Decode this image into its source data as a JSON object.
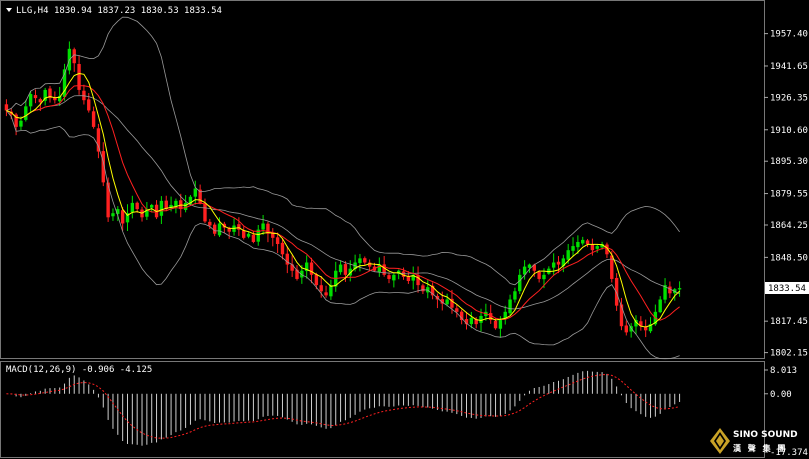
{
  "header": {
    "symbol": "LLG,H4",
    "ohlc": "1830.94 1837.23 1830.53 1833.54"
  },
  "macd_header": "MACD(12,26,9) -0.906 -4.125",
  "colors": {
    "bull": "#00e000",
    "bear": "#ff2020",
    "fast_ma": "#ffff00",
    "slow_ma": "#ff2020",
    "bands": "#9a9a9a",
    "price_tag_bg": "#ffffff",
    "macd_hist": "#d0d0d0",
    "macd_signal": "#ff2020"
  },
  "chart_data": [
    {
      "type": "candlestick",
      "title": "LLG,H4",
      "y_ticks": [
        1957.4,
        1941.65,
        1926.35,
        1910.6,
        1895.3,
        1879.55,
        1864.25,
        1848.5,
        1817.45,
        1802.15
      ],
      "ylim": [
        1800.5,
        1965.0
      ],
      "last_price": 1833.54,
      "x": [],
      "close_path": [
        1920,
        1918,
        1912,
        1915,
        1922,
        1928,
        1926,
        1924,
        1930,
        1926,
        1925,
        1927,
        1940,
        1950,
        1943,
        1930,
        1925,
        1920,
        1912,
        1900,
        1885,
        1868,
        1870,
        1872,
        1865,
        1870,
        1875,
        1872,
        1868,
        1872,
        1874,
        1868,
        1876,
        1872,
        1874,
        1876,
        1872,
        1875,
        1878,
        1882,
        1875,
        1866,
        1864,
        1860,
        1865,
        1863,
        1861,
        1864,
        1862,
        1858,
        1860,
        1856,
        1862,
        1865,
        1860,
        1858,
        1855,
        1850,
        1845,
        1842,
        1838,
        1842,
        1846,
        1840,
        1835,
        1832,
        1830,
        1835,
        1842,
        1845,
        1840,
        1843,
        1846,
        1848,
        1846,
        1844,
        1842,
        1845,
        1840,
        1838,
        1840,
        1842,
        1839,
        1837,
        1840,
        1835,
        1832,
        1834,
        1830,
        1828,
        1826,
        1828,
        1824,
        1822,
        1818,
        1816,
        1819,
        1816,
        1820,
        1822,
        1818,
        1814,
        1818,
        1822,
        1828,
        1832,
        1840,
        1844,
        1845,
        1842,
        1838,
        1840,
        1843,
        1846,
        1845,
        1848,
        1852,
        1854,
        1856,
        1857,
        1855,
        1852,
        1854,
        1855,
        1850,
        1838,
        1825,
        1815,
        1812,
        1815,
        1818,
        1815,
        1813,
        1816,
        1822,
        1828,
        1835,
        1831,
        1833,
        1833.54
      ]
    },
    {
      "type": "bar",
      "title": "MACD(12,26,9)",
      "y_ticks": [
        8.013,
        0.0,
        -17.374
      ],
      "ylim": [
        -17.374,
        8.013
      ],
      "last_macd": -0.906,
      "last_signal": -4.125
    }
  ],
  "logo": {
    "brand": "SINO SOUND",
    "subtitle": "漢 聲 集 團"
  }
}
